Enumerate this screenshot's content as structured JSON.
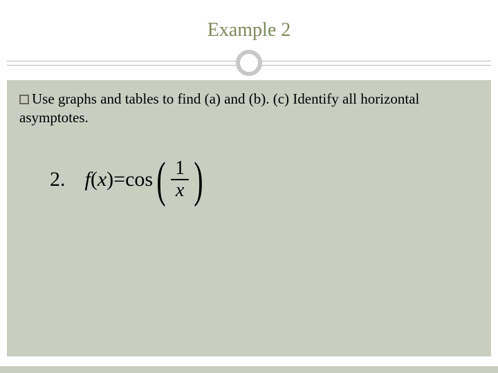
{
  "colors": {
    "title": "#7a8a5a",
    "content_bg": "#c9cec1",
    "divider": "#b8b8b8",
    "badge_border": "#c8c8c8",
    "bullet_border": "#6a6a55",
    "text": "#000000",
    "page_bg": "#ffffff"
  },
  "title": "Example 2",
  "prompt": {
    "text_before": "Use graphs and tables to find (a) and (b). (c) Identify all horizontal asymptotes."
  },
  "equation": {
    "number": "2.",
    "lhs_f": "f",
    "lhs_paren_open": "(",
    "lhs_x": "x",
    "lhs_paren_close": ")",
    "eq": " = ",
    "func": "cos",
    "frac_num": "1",
    "frac_den": "x"
  },
  "typography": {
    "title_fontsize": 28,
    "prompt_fontsize": 21,
    "equation_fontsize": 30,
    "frac_fontsize": 28,
    "big_paren_fontsize": 72
  }
}
